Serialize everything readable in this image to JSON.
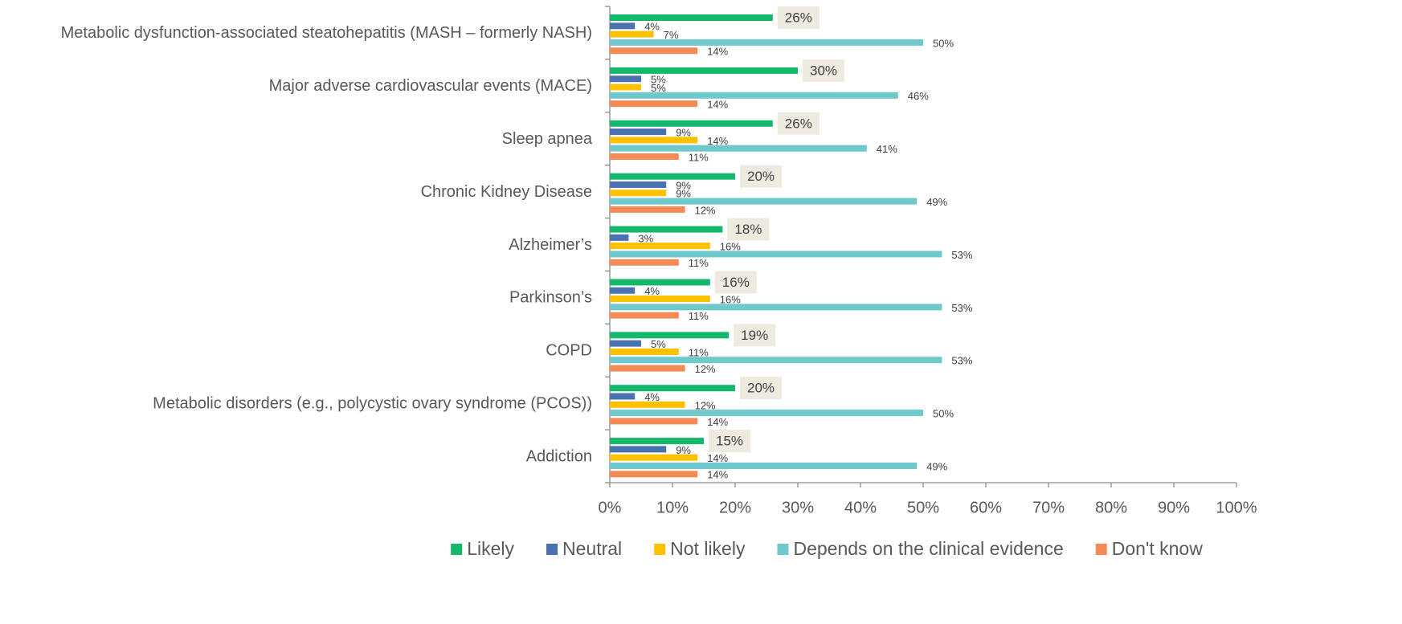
{
  "chart_data": {
    "type": "bar",
    "orientation": "horizontal",
    "categories": [
      "Metabolic dysfunction-associated steatohepatitis (MASH – formerly NASH)",
      "Major adverse cardiovascular events (MACE)",
      "Sleep apnea",
      "Chronic Kidney Disease",
      "Alzheimer’s",
      "Parkinson’s",
      "COPD",
      "Metabolic disorders (e.g., polycystic ovary syndrome (PCOS))",
      "Addiction"
    ],
    "series": [
      {
        "name": "Likely",
        "color": "#14b86a",
        "values": [
          26,
          30,
          26,
          20,
          18,
          16,
          19,
          20,
          15
        ],
        "value_labels": [
          "26%",
          "30%",
          "26%",
          "20%",
          "18%",
          "16%",
          "19%",
          "20%",
          "15%"
        ]
      },
      {
        "name": "Neutral",
        "color": "#4a72b0",
        "values": [
          4,
          5,
          9,
          9,
          3,
          4,
          5,
          4,
          9
        ],
        "value_labels": [
          "4%",
          "5%",
          "9%",
          "9%",
          "3%",
          "4%",
          "5%",
          "4%",
          "9%"
        ]
      },
      {
        "name": "Not likely",
        "color": "#ffc000",
        "values": [
          7,
          5,
          14,
          9,
          16,
          16,
          11,
          12,
          14
        ],
        "value_labels": [
          "7%",
          "5%",
          "14%",
          "9%",
          "16%",
          "16%",
          "11%",
          "12%",
          "14%"
        ]
      },
      {
        "name": "Depends on the clinical evidence",
        "color": "#6fc8cc",
        "values": [
          50,
          46,
          41,
          49,
          53,
          53,
          53,
          50,
          49
        ],
        "value_labels": [
          "50%",
          "46%",
          "41%",
          "49%",
          "53%",
          "53%",
          "53%",
          "50%",
          "49%"
        ]
      },
      {
        "name": "Don't know",
        "color": "#f58a54",
        "values": [
          14,
          14,
          11,
          12,
          11,
          11,
          12,
          14,
          14
        ],
        "value_labels": [
          "14%",
          "14%",
          "11%",
          "12%",
          "11%",
          "11%",
          "12%",
          "14%",
          "14%"
        ]
      }
    ],
    "xlim": [
      0,
      100
    ],
    "xticks": [
      {
        "value": 0,
        "label": "0%"
      },
      {
        "value": 10,
        "label": "10%"
      },
      {
        "value": 20,
        "label": "20%"
      },
      {
        "value": 30,
        "label": "30%"
      },
      {
        "value": 40,
        "label": "40%"
      },
      {
        "value": 50,
        "label": "50%"
      },
      {
        "value": 60,
        "label": "60%"
      },
      {
        "value": 70,
        "label": "70%"
      },
      {
        "value": 80,
        "label": "80%"
      },
      {
        "value": 90,
        "label": "90%"
      },
      {
        "value": 100,
        "label": "100%"
      }
    ],
    "legend": "bottom"
  }
}
